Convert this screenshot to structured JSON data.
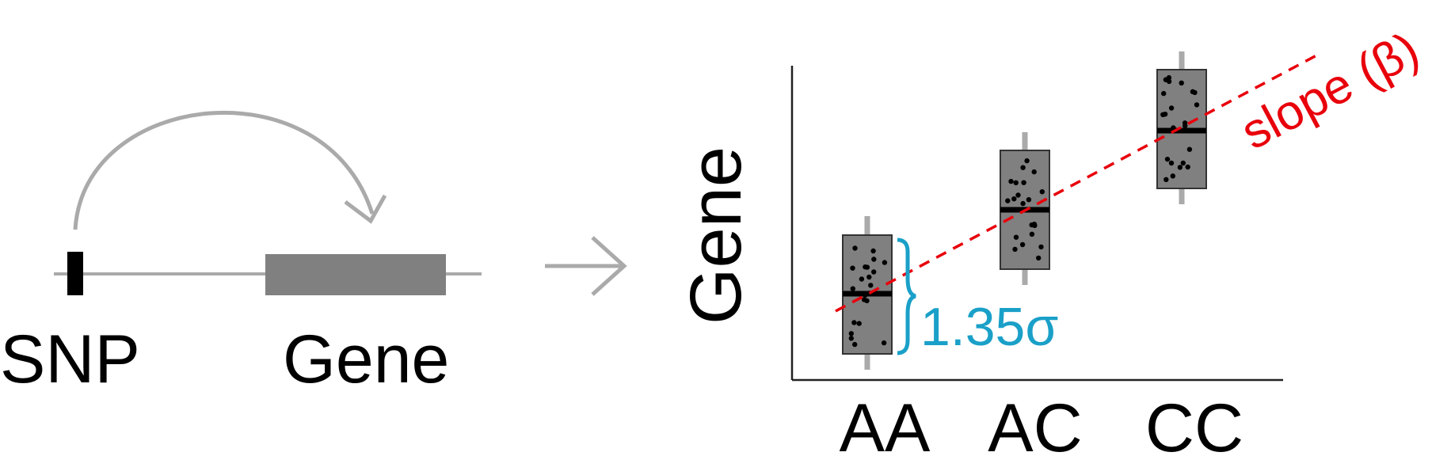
{
  "left_panel": {
    "snp_label": "SNP",
    "gene_label": "Gene"
  },
  "arrow": {
    "glyph": "→"
  },
  "plot": {
    "y_axis_label": "Gene",
    "categories": [
      "AA",
      "AC",
      "CC"
    ],
    "iqr_annotation": "1.35σ",
    "slope_prefix": "slope ",
    "slope_symbol": "(β)"
  },
  "colors": {
    "gray_line": "#aaaaaa",
    "gene_box": "#808080",
    "box_fill": "#808080",
    "snp_mark": "#000000",
    "slope_red": "#e8000b",
    "annotation_blue": "#1aa0c8"
  }
}
